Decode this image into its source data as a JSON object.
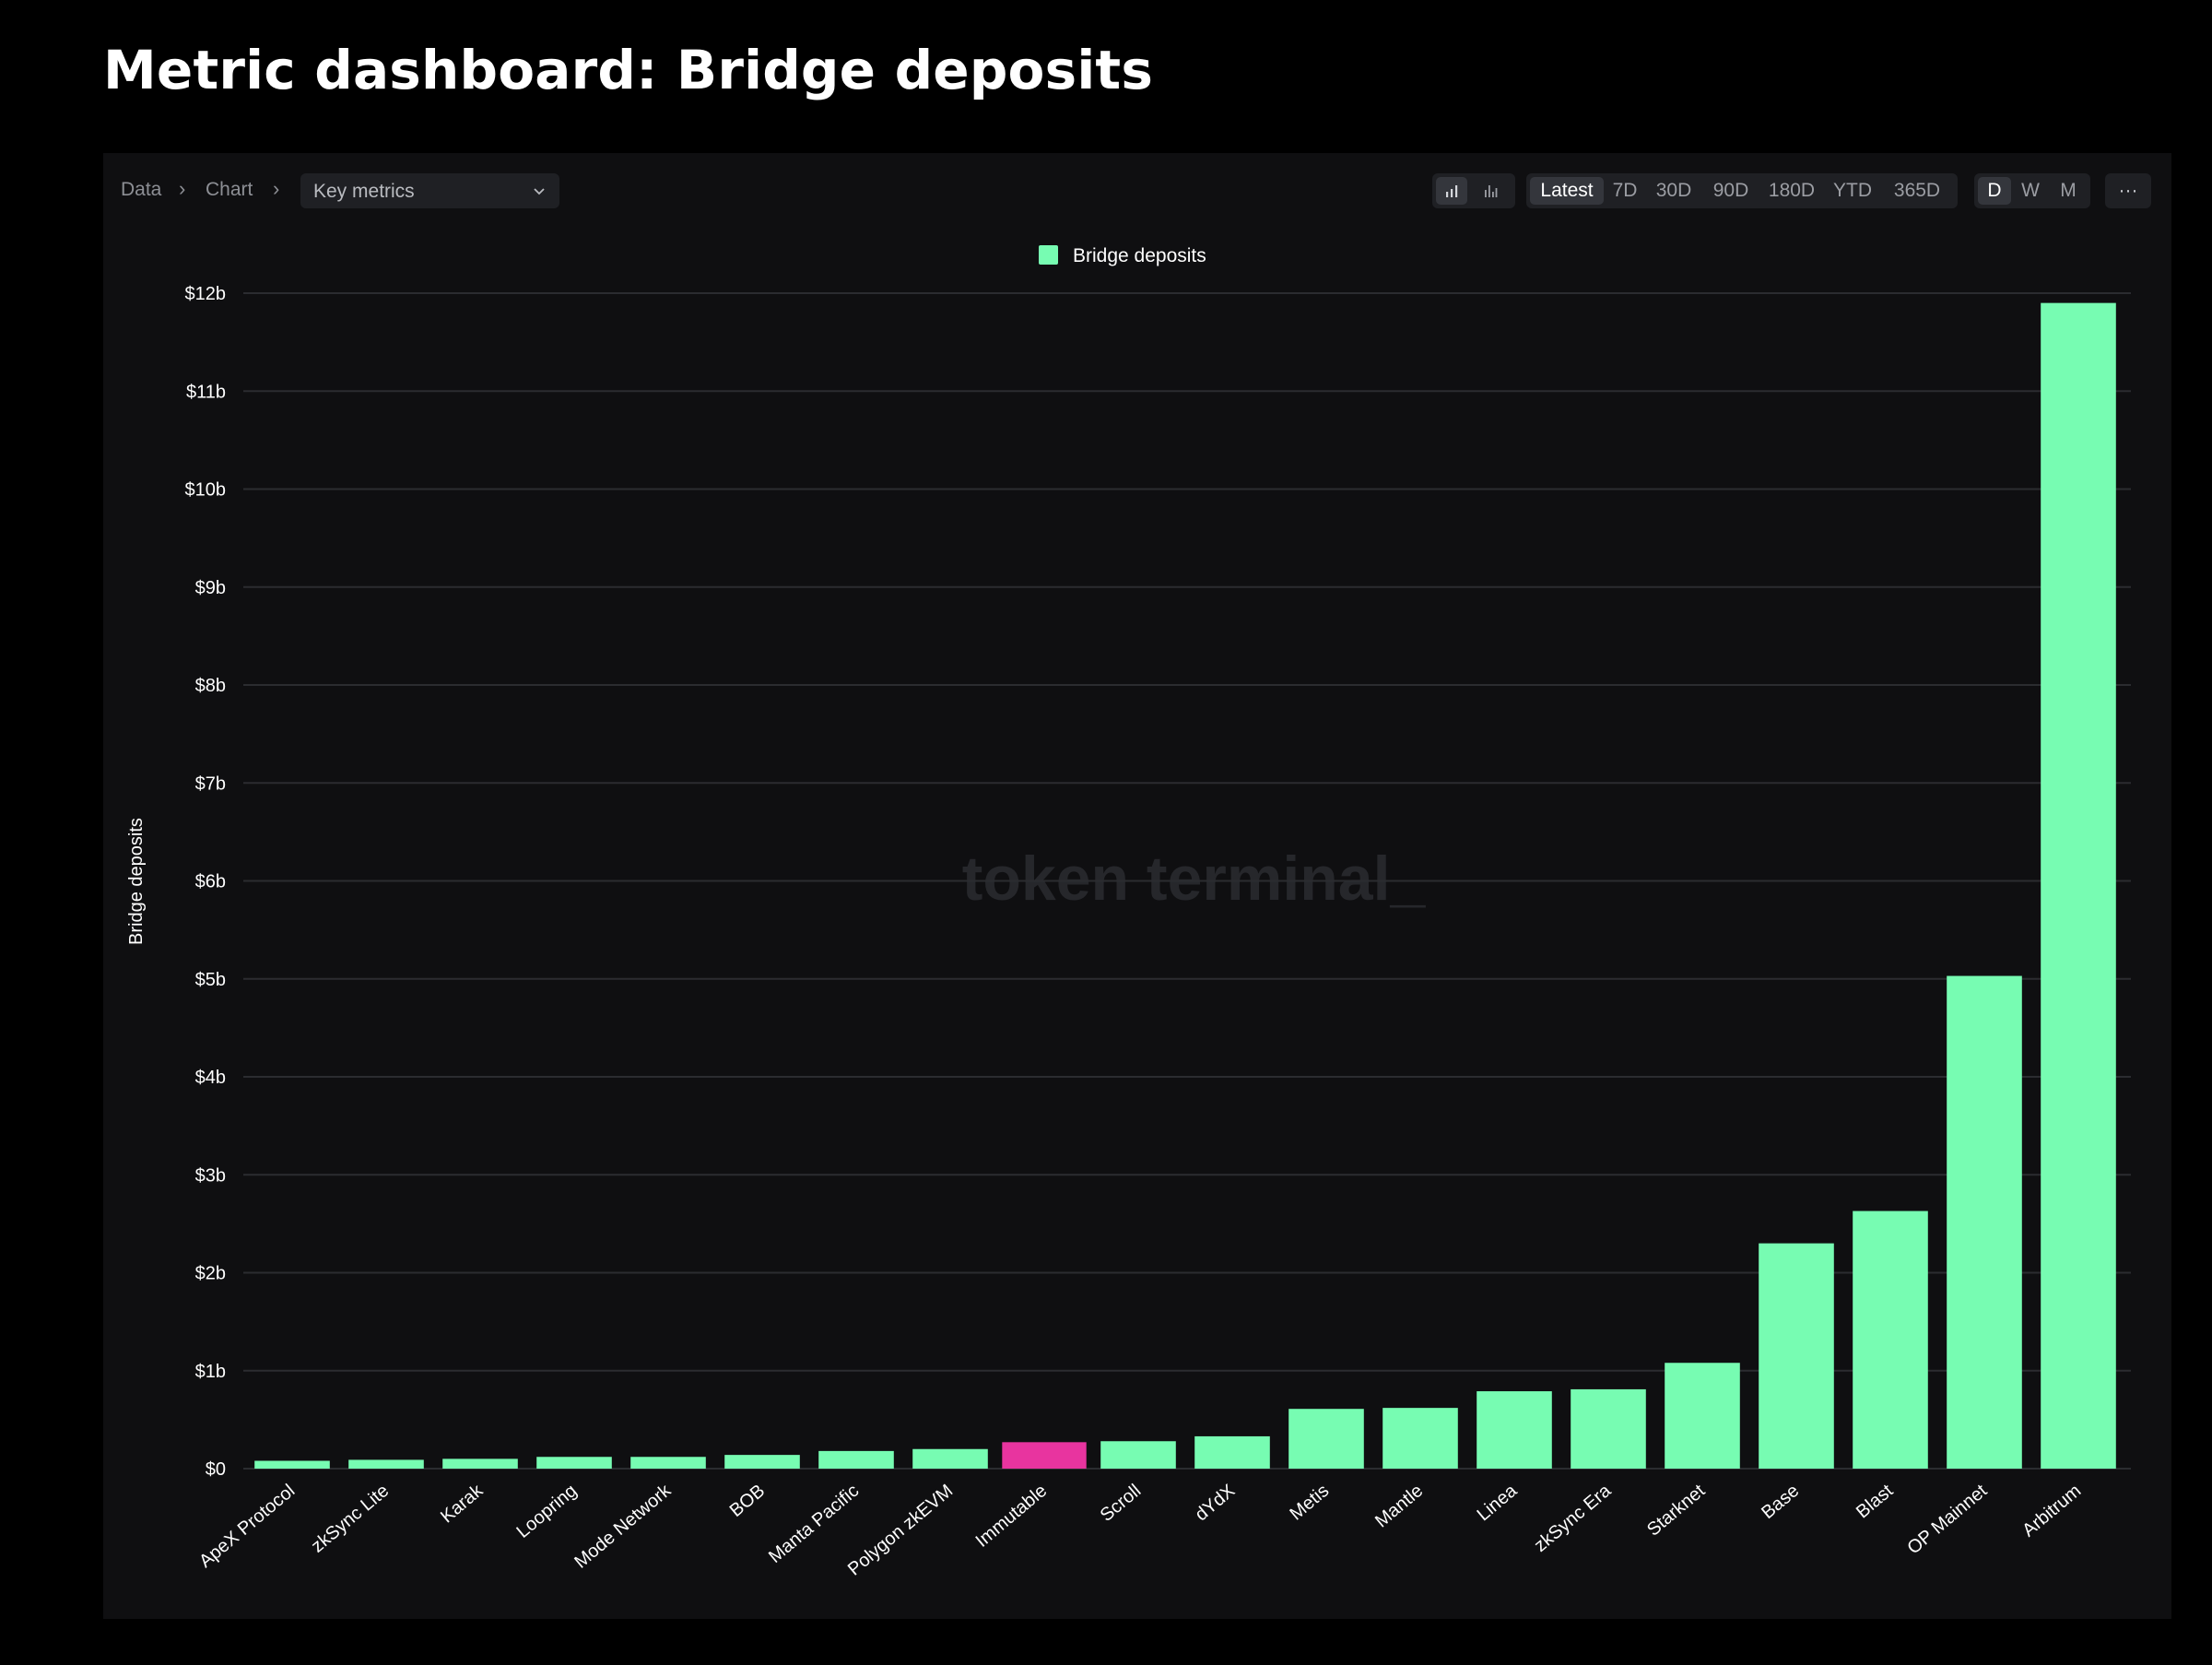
{
  "page": {
    "title": "Metric dashboard: Bridge deposits"
  },
  "toolbar": {
    "breadcrumb": [
      "Data",
      "Chart"
    ],
    "metric_select": "Key metrics",
    "chart_type_icons": [
      "bar-chart-icon",
      "column-chart-icon"
    ],
    "ranges": [
      "Latest",
      "7D",
      "30D",
      "90D",
      "180D",
      "YTD",
      "365D"
    ],
    "active_range": "Latest",
    "granularities": [
      "D",
      "W",
      "M"
    ],
    "active_granularity": "D",
    "more_label": "···"
  },
  "watermark": "token terminal_",
  "colors": {
    "bar": "#77fcb2",
    "highlight": "#e8349f",
    "background": "#0f0f11",
    "grid": "#2b2c30"
  },
  "chart_data": {
    "type": "bar",
    "title": "",
    "legend": [
      "Bridge deposits"
    ],
    "legend_position": "top-center",
    "ylabel": "Bridge deposits",
    "xlabel": "",
    "ylim": [
      0,
      12
    ],
    "yticks": [
      "$0",
      "$1b",
      "$2b",
      "$3b",
      "$4b",
      "$5b",
      "$6b",
      "$7b",
      "$8b",
      "$9b",
      "$10b",
      "$11b",
      "$12b"
    ],
    "unit": "$ billions",
    "grid": true,
    "highlighted_category": "Immutable",
    "categories": [
      "ApeX Protocol",
      "zkSync Lite",
      "Karak",
      "Loopring",
      "Mode Network",
      "BOB",
      "Manta Pacific",
      "Polygon zkEVM",
      "Immutable",
      "Scroll",
      "dYdX",
      "Metis",
      "Mantle",
      "Linea",
      "zkSync Era",
      "Starknet",
      "Base",
      "Blast",
      "OP Mainnet",
      "Arbitrum"
    ],
    "series": [
      {
        "name": "Bridge deposits",
        "values": [
          0.08,
          0.09,
          0.1,
          0.12,
          0.12,
          0.14,
          0.18,
          0.2,
          0.27,
          0.28,
          0.33,
          0.61,
          0.62,
          0.79,
          0.81,
          1.08,
          2.3,
          2.63,
          5.03,
          11.9
        ]
      }
    ]
  }
}
